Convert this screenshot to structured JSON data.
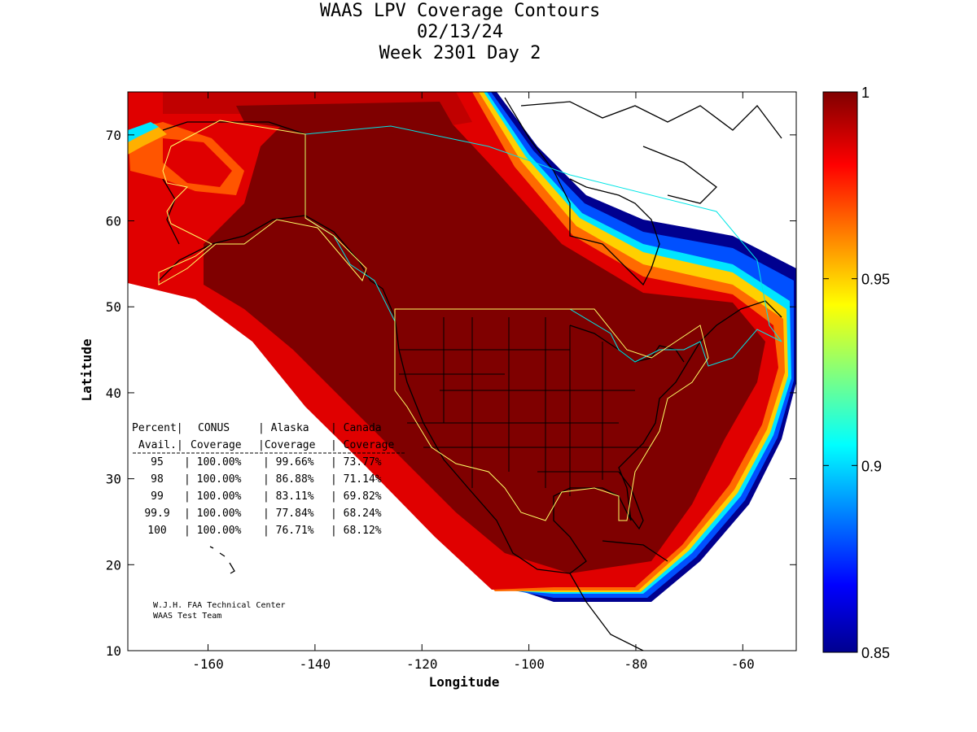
{
  "title": {
    "line1": "WAAS LPV Coverage Contours",
    "line2": "02/13/24",
    "line3": "Week 2301 Day 2"
  },
  "axes": {
    "xlabel": "Longitude",
    "ylabel": "Latitude",
    "xlim": [
      -175,
      -50
    ],
    "ylim": [
      10,
      75
    ],
    "xticks": [
      -160,
      -140,
      -120,
      -100,
      -80,
      -60
    ],
    "yticks": [
      10,
      20,
      30,
      40,
      50,
      60,
      70
    ]
  },
  "colorbar": {
    "min": 0.85,
    "max": 1,
    "ticks": [
      "0.85",
      "0.9",
      "0.95",
      "1"
    ],
    "colormap": "jet"
  },
  "table": {
    "header1": [
      "Percent|",
      "CONUS",
      "| Alaska",
      "| Canada"
    ],
    "header2": [
      "Avail.|",
      "Coverage",
      "|Coverage",
      "| Coverage"
    ],
    "rows": [
      {
        "avail": "95",
        "conus": "| 100.00%",
        "alaska": "| 99.66%",
        "canada": "| 73.77%"
      },
      {
        "avail": "98",
        "conus": "| 100.00%",
        "alaska": "| 86.88%",
        "canada": "| 71.14%"
      },
      {
        "avail": "99",
        "conus": "| 100.00%",
        "alaska": "| 83.11%",
        "canada": "| 69.82%"
      },
      {
        "avail": "99.9",
        "conus": "| 100.00%",
        "alaska": "| 77.84%",
        "canada": "| 68.24%"
      },
      {
        "avail": "100",
        "conus": "| 100.00%",
        "alaska": "| 76.71%",
        "canada": "| 68.12%"
      }
    ]
  },
  "credits": {
    "line1": "W.J.H. FAA Technical Center",
    "line2": "WAAS Test Team"
  },
  "colors": {
    "dark_red": "#7f0000",
    "red": "#d40000",
    "orange_red": "#ff3c00",
    "orange": "#ff8800",
    "yellow": "#ffd000",
    "cyan": "#00e5ff",
    "blue": "#0040ff",
    "navy": "#00008f",
    "service_boundary": "#ffff66",
    "country_boundary": "#00e5e5"
  }
}
